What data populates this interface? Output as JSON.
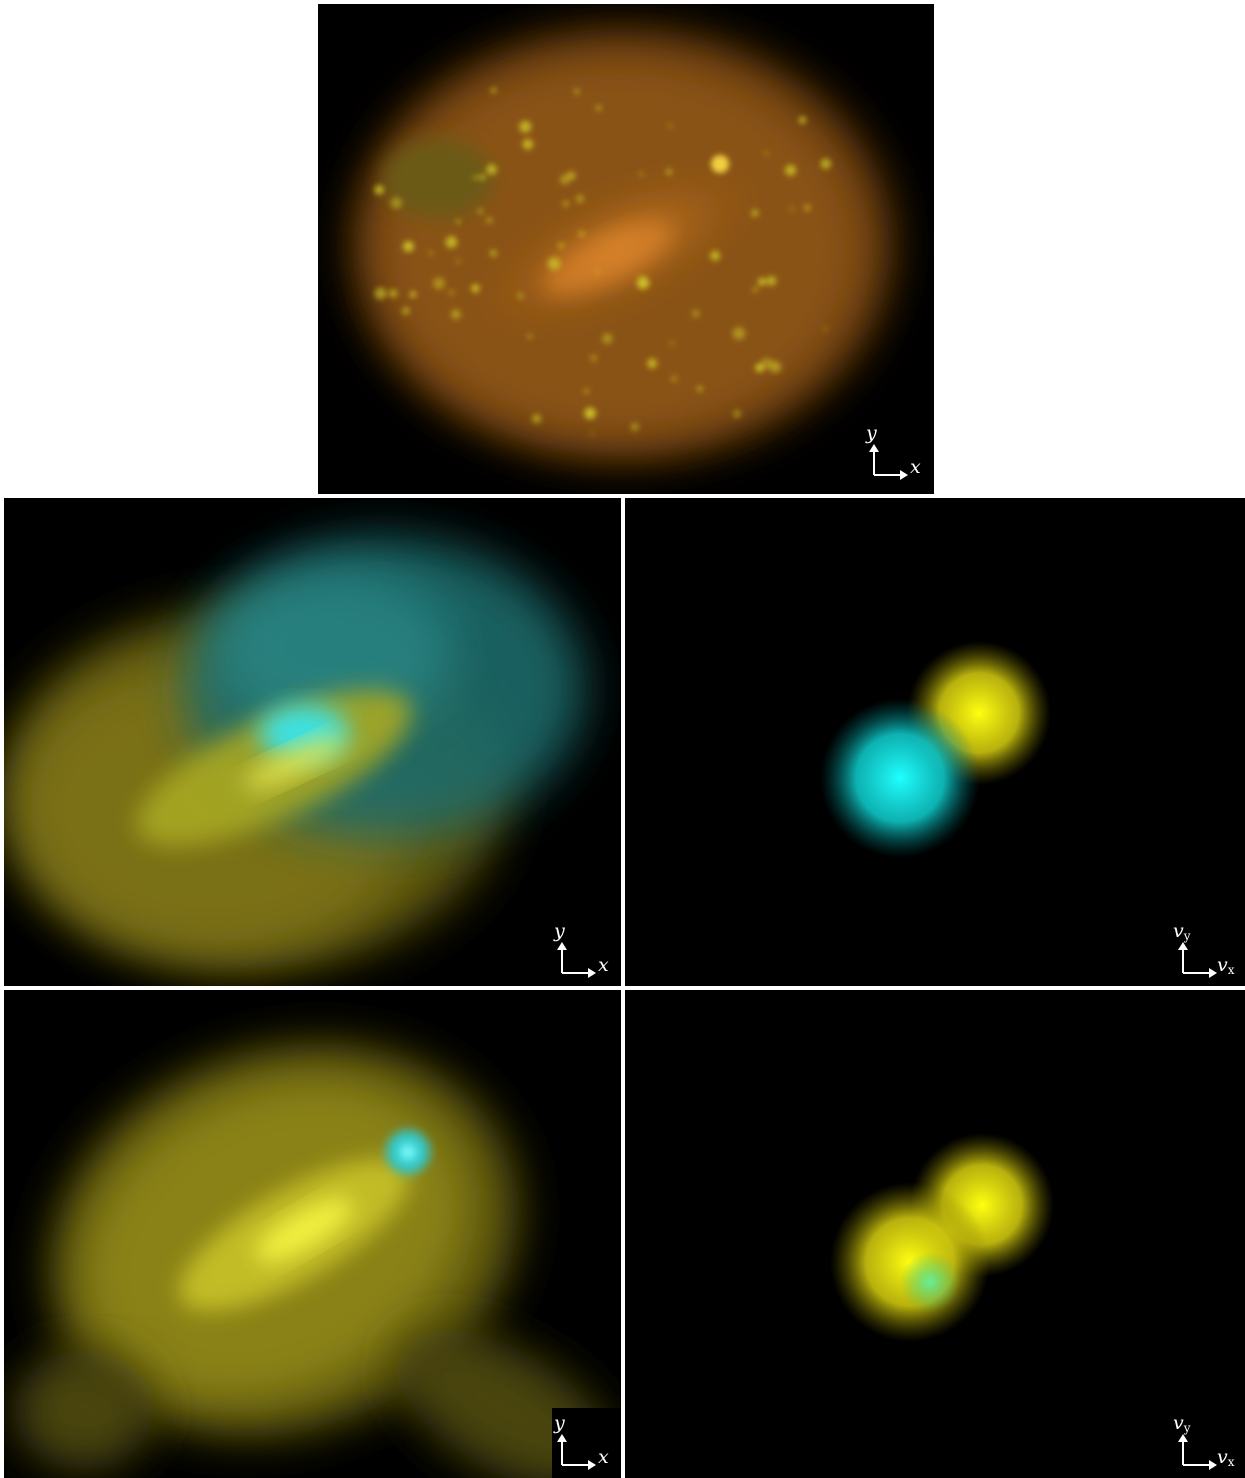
{
  "panels": [
    {
      "id": "top",
      "axis_y": "y",
      "axis_x": "x",
      "axis_y_sub": "",
      "axis_x_sub": ""
    },
    {
      "id": "mid-left",
      "axis_y": "y",
      "axis_x": "x",
      "axis_y_sub": "",
      "axis_x_sub": ""
    },
    {
      "id": "mid-right",
      "axis_y": "v",
      "axis_x": "v",
      "axis_y_sub": "y",
      "axis_x_sub": "x"
    },
    {
      "id": "bottom-left",
      "axis_y": "y",
      "axis_x": "x",
      "axis_y_sub": "",
      "axis_x_sub": ""
    },
    {
      "id": "bottom-right",
      "axis_y": "v",
      "axis_x": "v",
      "axis_y_sub": "y",
      "axis_x_sub": "x"
    }
  ],
  "colors": {
    "background": "#000000",
    "orange_component": "#c8781e",
    "yellow_component": "#e6e014",
    "cyan_component": "#1ee6e6",
    "axis": "#ffffff"
  }
}
